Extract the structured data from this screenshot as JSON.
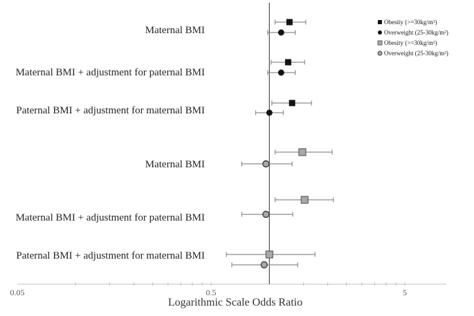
{
  "chart_data": {
    "type": "scatter",
    "subtype": "forest-plot",
    "title": "",
    "xlabel": "Logarithmic Scale Odds Ratio",
    "ylabel": "",
    "x_scale": "log",
    "x_domain": [
      0.05,
      8.2
    ],
    "grid": false,
    "reference_line": 1.0,
    "x_tick_labels": [
      {
        "value": 0.05,
        "label": "0.05"
      },
      {
        "value": 0.5,
        "label": "0.5"
      },
      {
        "value": 5,
        "label": "5"
      }
    ],
    "x_minor_ticks": [
      0.1,
      0.15,
      0.2,
      0.25,
      0.3,
      0.35,
      0.4,
      0.45,
      0.5,
      1.5,
      2,
      2.5,
      3,
      3.5,
      4,
      4.5,
      5
    ],
    "legend": {
      "position": "top-right",
      "items": [
        {
          "label": "Obesity (>=30kg/m²)",
          "marker": "square",
          "style": "black"
        },
        {
          "label": "Overweight (25-30kg/m²)",
          "marker": "circle",
          "style": "black"
        },
        {
          "label": "Obesity (>=30kg/m²)",
          "marker": "square",
          "style": "gray"
        },
        {
          "label": "Overweight (25-30kg/m²)",
          "marker": "circle",
          "style": "gray"
        }
      ]
    },
    "rows": [
      {
        "label": "Maternal BMI",
        "style": "black",
        "points": [
          {
            "series": "Obesity (>=30kg/m²)",
            "marker": "square",
            "or": 1.27,
            "ci_low": 1.07,
            "ci_high": 1.54
          },
          {
            "series": "Overweight (25-30kg/m²)",
            "marker": "circle",
            "or": 1.15,
            "ci_low": 0.98,
            "ci_high": 1.36
          }
        ]
      },
      {
        "label": "Maternal BMI + adjustment for paternal BMI",
        "style": "black",
        "points": [
          {
            "series": "Obesity (>=30kg/m²)",
            "marker": "square",
            "or": 1.25,
            "ci_low": 1.02,
            "ci_high": 1.52
          },
          {
            "series": "Overweight (25-30kg/m²)",
            "marker": "circle",
            "or": 1.15,
            "ci_low": 0.98,
            "ci_high": 1.36
          }
        ]
      },
      {
        "label": "Paternal BMI + adjustment for maternal BMI",
        "style": "black",
        "points": [
          {
            "series": "Obesity (>=30kg/m²)",
            "marker": "square",
            "or": 1.31,
            "ci_low": 1.03,
            "ci_high": 1.65
          },
          {
            "series": "Overweight (25-30kg/m²)",
            "marker": "circle",
            "or": 1.0,
            "ci_low": 0.85,
            "ci_high": 1.18
          }
        ]
      },
      {
        "label": "Maternal BMI",
        "style": "gray",
        "points": [
          {
            "series": "Obesity (>=30kg/m²)",
            "marker": "square",
            "or": 1.48,
            "ci_low": 1.07,
            "ci_high": 2.11
          },
          {
            "series": "Overweight (25-30kg/m²)",
            "marker": "circle",
            "or": 0.96,
            "ci_low": 0.72,
            "ci_high": 1.31
          }
        ]
      },
      {
        "label": "Maternal BMI + adjustment for paternal BMI",
        "style": "gray",
        "points": [
          {
            "series": "Obesity (>=30kg/m²)",
            "marker": "square",
            "or": 1.52,
            "ci_low": 1.07,
            "ci_high": 2.14
          },
          {
            "series": "Overweight (25-30kg/m²)",
            "marker": "circle",
            "or": 0.96,
            "ci_low": 0.72,
            "ci_high": 1.32
          }
        ]
      },
      {
        "label": "Paternal BMI + adjustment for maternal BMI",
        "style": "gray",
        "points": [
          {
            "series": "Obesity (>=30kg/m²)",
            "marker": "square",
            "or": 1.0,
            "ci_low": 0.6,
            "ci_high": 1.72
          },
          {
            "series": "Overweight (25-30kg/m²)",
            "marker": "circle",
            "or": 0.94,
            "ci_low": 0.64,
            "ci_high": 1.4
          }
        ]
      }
    ],
    "colors": {
      "background": "#ffffff",
      "black_marker": "#141414",
      "gray_marker_fill": "#a8a8a8",
      "gray_square_stroke": "#616161",
      "gray_circle_stroke": "#3f3f3f",
      "error_bar": "#8c8c8c",
      "axis_line": "#c0c0c0",
      "tick_label": "#595959",
      "reference_line": "#4a4a4a",
      "label_text": "#262626"
    }
  }
}
